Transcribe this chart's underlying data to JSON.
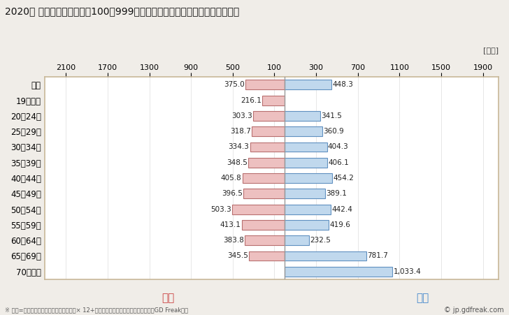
{
  "title": "2020年 民間企業（従業者数100～999人）フルタイム労働者の男女別平均年収",
  "unit_label": "[万円]",
  "footnote": "※ 年収=「きまって支給する現金給与額」× 12+「年間賞与その他特別給与額」としてGD Freak推計",
  "copyright": "© jp.gdfreak.com",
  "categories": [
    "全体",
    "19歳以下",
    "20～24歳",
    "25～29歳",
    "30～34歳",
    "35～39歳",
    "40～44歳",
    "45～49歳",
    "50～54歳",
    "55～59歳",
    "60～64歳",
    "65～69歳",
    "70歳以上"
  ],
  "female_values": [
    375.0,
    216.1,
    303.3,
    318.7,
    334.3,
    348.5,
    405.8,
    396.5,
    503.3,
    413.1,
    383.8,
    345.5,
    0.0
  ],
  "male_values": [
    448.3,
    0.0,
    341.5,
    360.9,
    404.3,
    406.1,
    454.2,
    389.1,
    442.4,
    419.6,
    232.5,
    781.7,
    1033.4
  ],
  "female_color": "#edc0c0",
  "male_color": "#c0d8ed",
  "female_edge_color": "#b87070",
  "male_edge_color": "#6090c0",
  "female_label": "女性",
  "male_label": "男性",
  "female_label_color": "#cc4444",
  "male_label_color": "#4488cc",
  "left_ticks": [
    2100,
    1700,
    1300,
    900,
    500,
    100
  ],
  "right_ticks": [
    100,
    300,
    700,
    1100,
    1500,
    1900
  ],
  "xlim_left": -2300,
  "xlim_right": 2050,
  "background_color": "#f0ede8",
  "plot_bg_color": "#ffffff",
  "center_line_color": "#999999",
  "border_color": "#c8b898"
}
